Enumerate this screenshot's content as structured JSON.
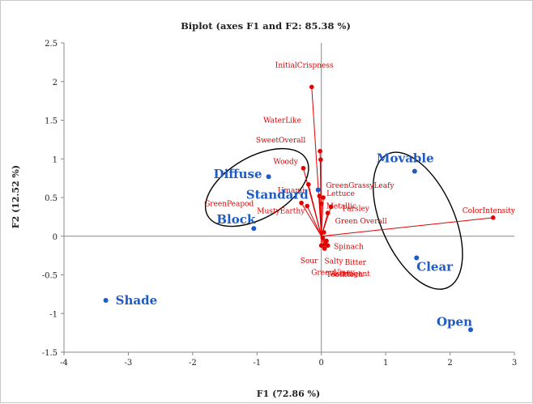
{
  "chart_data": {
    "type": "scatter",
    "title": "Biplot (axes F1 and F2: 85.38 %)",
    "xlabel": "F1 (72.86 %)",
    "ylabel": "F2 (12.52 %)",
    "xlim": [
      -4,
      3
    ],
    "ylim": [
      -1.5,
      2.5
    ],
    "xticks": [
      -4,
      -3,
      -2,
      -1,
      0,
      1,
      2,
      3
    ],
    "yticks": [
      -1.5,
      -1,
      -0.5,
      0,
      0.5,
      1,
      1.5,
      2,
      2.5
    ],
    "xtick_labels": [
      "-4",
      "-3",
      "-2",
      "-1",
      "0",
      "1",
      "2",
      "3"
    ],
    "ytick_labels": [
      "-1.5",
      "-1",
      "-0.5",
      "0",
      "0.5",
      "1",
      "1.5",
      "2",
      "2.5"
    ],
    "colors": {
      "observations": "#1f5bc4",
      "variables": "#e00000",
      "ellipses": "#000000",
      "axes": "#888888"
    },
    "observations": [
      {
        "label": "Shade",
        "x": -3.35,
        "y": -0.83
      },
      {
        "label": "Block",
        "x": -1.05,
        "y": 0.1
      },
      {
        "label": "Diffuse",
        "x": -0.82,
        "y": 0.77
      },
      {
        "label": "Standard",
        "x": -0.05,
        "y": 0.6
      },
      {
        "label": "Movable",
        "x": 1.45,
        "y": 0.84
      },
      {
        "label": "Clear",
        "x": 1.48,
        "y": -0.28
      },
      {
        "label": "Open",
        "x": 2.32,
        "y": -1.21
      }
    ],
    "variables": [
      {
        "label": "InitialCrispness",
        "x": -0.15,
        "y": 1.93
      },
      {
        "label": "WaterLike",
        "x": -0.02,
        "y": 1.1
      },
      {
        "label": "SweetOverall",
        "x": -0.01,
        "y": 0.99
      },
      {
        "label": "Woody",
        "x": -0.28,
        "y": 0.88
      },
      {
        "label": "Umami",
        "x": -0.2,
        "y": 0.67
      },
      {
        "label": "GreenPeapod",
        "x": -0.31,
        "y": 0.43
      },
      {
        "label": "MustyEarthy",
        "x": -0.22,
        "y": 0.39
      },
      {
        "label": "GreenGrassyLeafy",
        "x": -0.03,
        "y": 0.52
      },
      {
        "label": "Lettuce",
        "x": 0.03,
        "y": 0.5
      },
      {
        "label": "Metallic",
        "x": 0.0,
        "y": 0.42
      },
      {
        "label": "Parsley",
        "x": 0.15,
        "y": 0.38
      },
      {
        "label": "Green Overall",
        "x": 0.1,
        "y": 0.3
      },
      {
        "label": "ColorIntensity",
        "x": 2.67,
        "y": 0.24
      },
      {
        "label": "Spinach",
        "x": 0.08,
        "y": -0.06
      },
      {
        "label": "Sour",
        "x": 0.0,
        "y": -0.12
      },
      {
        "label": "Salty",
        "x": 0.06,
        "y": -0.1
      },
      {
        "label": "Bitter",
        "x": 0.1,
        "y": -0.12
      },
      {
        "label": "Astringent",
        "x": 0.05,
        "y": -0.16
      },
      {
        "label": "GreenViney",
        "x": 0.02,
        "y": -0.02
      },
      {
        "label": "Toothtech",
        "x": 0.04,
        "y": 0.05
      }
    ],
    "ellipses": [
      {
        "cx": -1.0,
        "cy": 0.63,
        "rx": 1.67,
        "ry": 0.9,
        "angle_deg": 30
      },
      {
        "cx": 1.5,
        "cy": 0.2,
        "rx": 1.07,
        "ry": 2.15,
        "angle_deg": 24
      }
    ]
  }
}
